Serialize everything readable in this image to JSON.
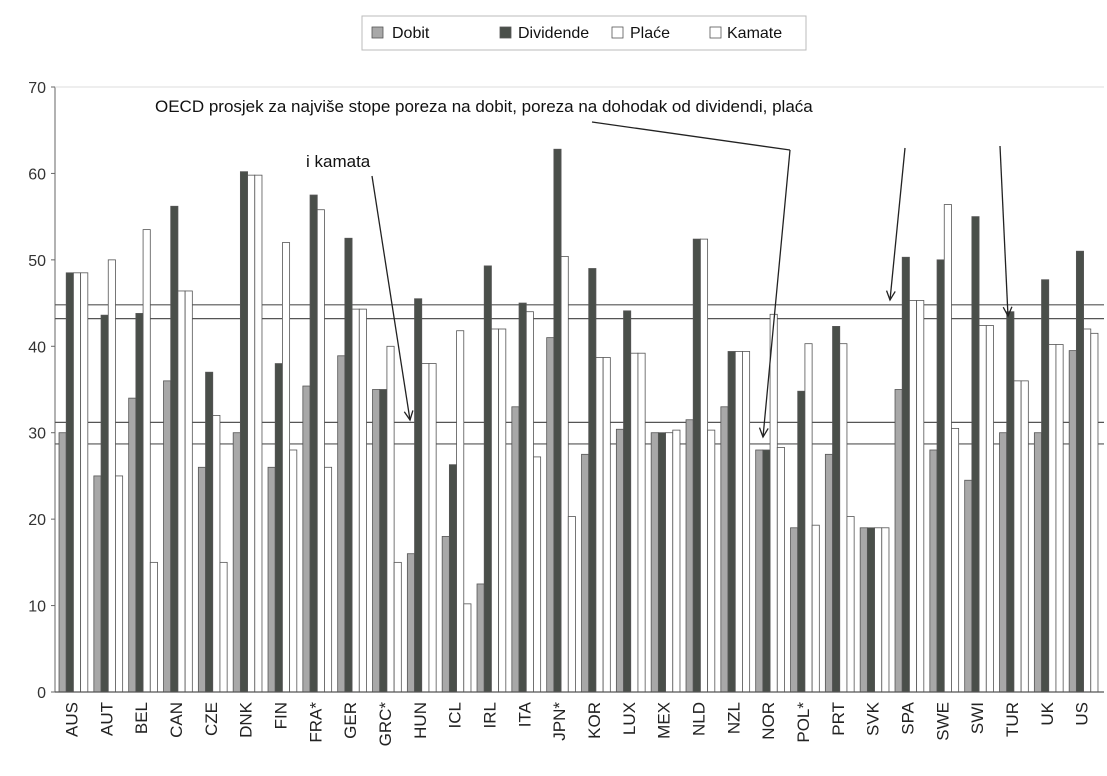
{
  "chart_data": {
    "type": "bar",
    "title": "",
    "xlabel": "",
    "ylabel": "",
    "ylim": [
      0,
      70
    ],
    "yticks": [
      0,
      10,
      20,
      30,
      40,
      50,
      60,
      70
    ],
    "grid": false,
    "legend": "top-center",
    "categories": [
      "AUS",
      "AUT",
      "BEL",
      "CAN",
      "CZE",
      "DNK",
      "FIN",
      "FRA*",
      "GER",
      "GRC*",
      "HUN",
      "ICL",
      "IRL",
      "ITA",
      "JPN*",
      "KOR",
      "LUX",
      "MEX",
      "NLD",
      "NZL",
      "NOR",
      "POL*",
      "PRT",
      "SVK",
      "SPA",
      "SWE",
      "SWI",
      "TUR",
      "UK",
      "US"
    ],
    "series": [
      {
        "name": "Dobit",
        "color": "#a8a8a8",
        "values": [
          30,
          25,
          34,
          36,
          26,
          30,
          26,
          35.4,
          38.9,
          35,
          16,
          18,
          12.5,
          33,
          41,
          27.5,
          30.4,
          30,
          31.5,
          33,
          28,
          19,
          27.5,
          19,
          35,
          28,
          24.5,
          30,
          30,
          39.5
        ]
      },
      {
        "name": "Dividende",
        "color": "#4a4f4a",
        "values": [
          48.5,
          43.6,
          43.8,
          56.2,
          37,
          60.2,
          38,
          57.5,
          52.5,
          35,
          45.5,
          26.3,
          49.3,
          45,
          62.8,
          49,
          44.1,
          30,
          52.4,
          39.4,
          28,
          34.8,
          42.3,
          19,
          50.3,
          50,
          55,
          44,
          47.7,
          51
        ]
      },
      {
        "name": "Plaće",
        "color": "#ffffff",
        "values": [
          48.5,
          50,
          53.5,
          46.4,
          32,
          59.8,
          52,
          55.8,
          44.3,
          40,
          38,
          41.8,
          42,
          44,
          50.4,
          38.7,
          39.2,
          30,
          52.4,
          39.4,
          43.7,
          40.3,
          40.3,
          19,
          45.3,
          56.4,
          42.4,
          36,
          40.2,
          42
        ]
      },
      {
        "name": "Kamate",
        "color": "#ffffff",
        "values": [
          48.5,
          25,
          15,
          46.4,
          15,
          59.8,
          28,
          26,
          44.3,
          15,
          38,
          10.2,
          42,
          27.2,
          20.3,
          38.7,
          39.2,
          30.3,
          30.3,
          39.4,
          28.3,
          19.3,
          20.3,
          19,
          45.3,
          30.5,
          42.4,
          36,
          40.2,
          41.5
        ]
      }
    ],
    "reference_lines": [
      44.8,
      43.2,
      31.2,
      28.7
    ],
    "annotations": {
      "line1": "OECD prosjek za najviše stope poreza na dobit, poreza na dohodak od dividendi, plaća",
      "line2": "i kamata"
    }
  }
}
